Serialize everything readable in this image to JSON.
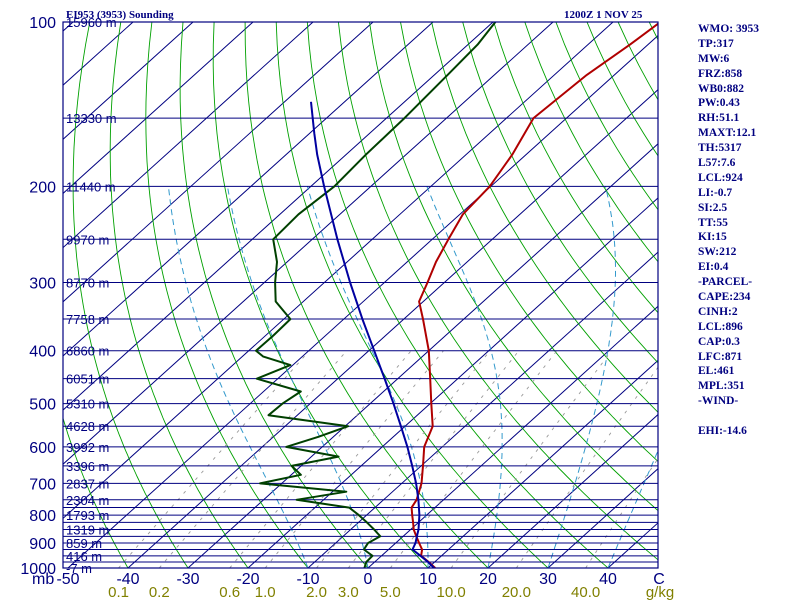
{
  "header": {
    "title": "EI953 (3953) Sounding",
    "time": "1200Z  1 NOV 25"
  },
  "indices": [
    "WMO: 3953",
    "TP:317",
    "MW:6",
    "FRZ:858",
    "WB0:882",
    "PW:0.43",
    "RH:51.1",
    "MAXT:12.1",
    "TH:5317",
    "L57:7.6",
    "LCL:924",
    "LI:-0.7",
    "SI:2.5",
    "TT:55",
    "KI:15",
    "SW:212",
    "EI:0.4",
    "-PARCEL-",
    "CAPE:234",
    "CINH:2",
    "LCL:896",
    "CAP:0.3",
    "LFC:871",
    "EL:461",
    "MPL:351",
    "-WIND-",
    "",
    "EHI:-14.6"
  ],
  "colors": {
    "frame": "#000080",
    "isobar": "#000080",
    "isotherm": "#000080",
    "dry_adiabat": "#00a000",
    "moist_adiabat": "#3399cc",
    "mixing_ratio": "#999999",
    "temperature": "#b00000",
    "dewpoint": "#004000",
    "parcel": "#0000a0",
    "pressure_labels": "#000080",
    "height_labels": "#000080",
    "temp_labels": "#000080",
    "mixing_labels": "#808000"
  },
  "chart_data": {
    "type": "line",
    "diagram": "skew-T log-P",
    "xlabel": "C",
    "x_corner_label": "mb",
    "ylabel": "",
    "xlim": [
      -50,
      50
    ],
    "ylim": [
      1000,
      100
    ],
    "y_scale": "log",
    "pressure_levels": [
      1000,
      975,
      950,
      925,
      900,
      875,
      850,
      825,
      800,
      775,
      750,
      700,
      650,
      600,
      550,
      500,
      450,
      400,
      350,
      300,
      250,
      200,
      150,
      100
    ],
    "pressure_tick_labels": [
      "100",
      "200",
      "300",
      "400",
      "500",
      "600",
      "700",
      "800",
      "900",
      "1000"
    ],
    "temperature_tick_labels": [
      "-50",
      "-40",
      "-30",
      "-20",
      "-10",
      "0",
      "10",
      "20",
      "30",
      "40",
      "C"
    ],
    "temperature_ticks": [
      -50,
      -40,
      -30,
      -20,
      -10,
      0,
      10,
      20,
      30,
      40
    ],
    "mixing_ratio_tick_labels": [
      "0.1",
      "0.2",
      "0.6",
      "1.0",
      "2.0",
      "3.0",
      "5.0",
      "10.0",
      "20.0",
      "40.0",
      "g/kg"
    ],
    "height_labels": [
      {
        "p": 100,
        "label": "15960 m"
      },
      {
        "p": 150,
        "label": "13330 m"
      },
      {
        "p": 200,
        "label": "11440 m"
      },
      {
        "p": 250,
        "label": "9970 m"
      },
      {
        "p": 300,
        "label": "8770 m"
      },
      {
        "p": 350,
        "label": "7758 m"
      },
      {
        "p": 400,
        "label": "6860 m"
      },
      {
        "p": 450,
        "label": "6051 m"
      },
      {
        "p": 500,
        "label": "5310 m"
      },
      {
        "p": 550,
        "label": "4628 m"
      },
      {
        "p": 600,
        "label": "3992 m"
      },
      {
        "p": 650,
        "label": "3396 m"
      },
      {
        "p": 700,
        "label": "2837 m"
      },
      {
        "p": 750,
        "label": "2304 m"
      },
      {
        "p": 800,
        "label": "1793 m"
      },
      {
        "p": 850,
        "label": "1319 m"
      },
      {
        "p": 900,
        "label": "859 m"
      },
      {
        "p": 950,
        "label": "416 m"
      },
      {
        "p": 1000,
        "label": "-7 m"
      }
    ],
    "series": [
      {
        "key": "temperature",
        "points": [
          [
            1000,
            11.2
          ],
          [
            975,
            9.0
          ],
          [
            950,
            6.6
          ],
          [
            925,
            5.6
          ],
          [
            900,
            3.9
          ],
          [
            875,
            2.2
          ],
          [
            850,
            0.5
          ],
          [
            825,
            -0.9
          ],
          [
            800,
            -2.4
          ],
          [
            775,
            -3.9
          ],
          [
            750,
            -4.5
          ],
          [
            700,
            -6.7
          ],
          [
            650,
            -9.7
          ],
          [
            600,
            -13.0
          ],
          [
            550,
            -15.4
          ],
          [
            500,
            -19.8
          ],
          [
            450,
            -24.6
          ],
          [
            400,
            -30.0
          ],
          [
            350,
            -36.8
          ],
          [
            325,
            -40.7
          ],
          [
            300,
            -42.8
          ],
          [
            275,
            -45.2
          ],
          [
            250,
            -47.3
          ],
          [
            225,
            -49.5
          ],
          [
            200,
            -50.2
          ],
          [
            175,
            -52.3
          ],
          [
            150,
            -55.5
          ],
          [
            125,
            -54.6
          ],
          [
            110,
            -53.0
          ],
          [
            100,
            -52.1
          ]
        ]
      },
      {
        "key": "dewpoint",
        "points": [
          [
            1000,
            -0.6
          ],
          [
            975,
            -1.4
          ],
          [
            950,
            -1.5
          ],
          [
            925,
            -4.1
          ],
          [
            900,
            -4.6
          ],
          [
            875,
            -3.8
          ],
          [
            850,
            -6.1
          ],
          [
            825,
            -8.6
          ],
          [
            800,
            -11.3
          ],
          [
            775,
            -14.3
          ],
          [
            750,
            -24.5
          ],
          [
            725,
            -17.7
          ],
          [
            700,
            -33.6
          ],
          [
            675,
            -28.4
          ],
          [
            650,
            -31.6
          ],
          [
            625,
            -25.5
          ],
          [
            600,
            -36.0
          ],
          [
            575,
            -32.5
          ],
          [
            550,
            -29.5
          ],
          [
            525,
            -44.8
          ],
          [
            500,
            -44.6
          ],
          [
            475,
            -43.8
          ],
          [
            450,
            -53.5
          ],
          [
            425,
            -50.4
          ],
          [
            410,
            -56.5
          ],
          [
            400,
            -58.8
          ],
          [
            375,
            -58.7
          ],
          [
            350,
            -58.9
          ],
          [
            325,
            -64.6
          ],
          [
            300,
            -68.2
          ],
          [
            275,
            -71.7
          ],
          [
            250,
            -76.5
          ],
          [
            225,
            -76.9
          ],
          [
            200,
            -76.1
          ],
          [
            175,
            -76.7
          ],
          [
            150,
            -77.0
          ],
          [
            125,
            -77.8
          ],
          [
            110,
            -78.4
          ],
          [
            100,
            -79.6
          ]
        ]
      },
      {
        "key": "parcel",
        "points": [
          [
            1000,
            11.0
          ],
          [
            975,
            8.9
          ],
          [
            950,
            6.5
          ],
          [
            925,
            4.0
          ],
          [
            900,
            3.3
          ],
          [
            875,
            2.3
          ],
          [
            850,
            1.3
          ],
          [
            800,
            -1.2
          ],
          [
            750,
            -4.2
          ],
          [
            700,
            -7.6
          ],
          [
            650,
            -11.5
          ],
          [
            600,
            -15.8
          ],
          [
            550,
            -20.7
          ],
          [
            500,
            -26.1
          ],
          [
            450,
            -32.2
          ],
          [
            400,
            -39.1
          ],
          [
            350,
            -46.9
          ],
          [
            300,
            -55.7
          ],
          [
            250,
            -65.8
          ],
          [
            200,
            -77.8
          ],
          [
            175,
            -84.8
          ],
          [
            160,
            -89.2
          ],
          [
            150,
            -92.3
          ],
          [
            140,
            -95.6
          ]
        ]
      }
    ]
  }
}
